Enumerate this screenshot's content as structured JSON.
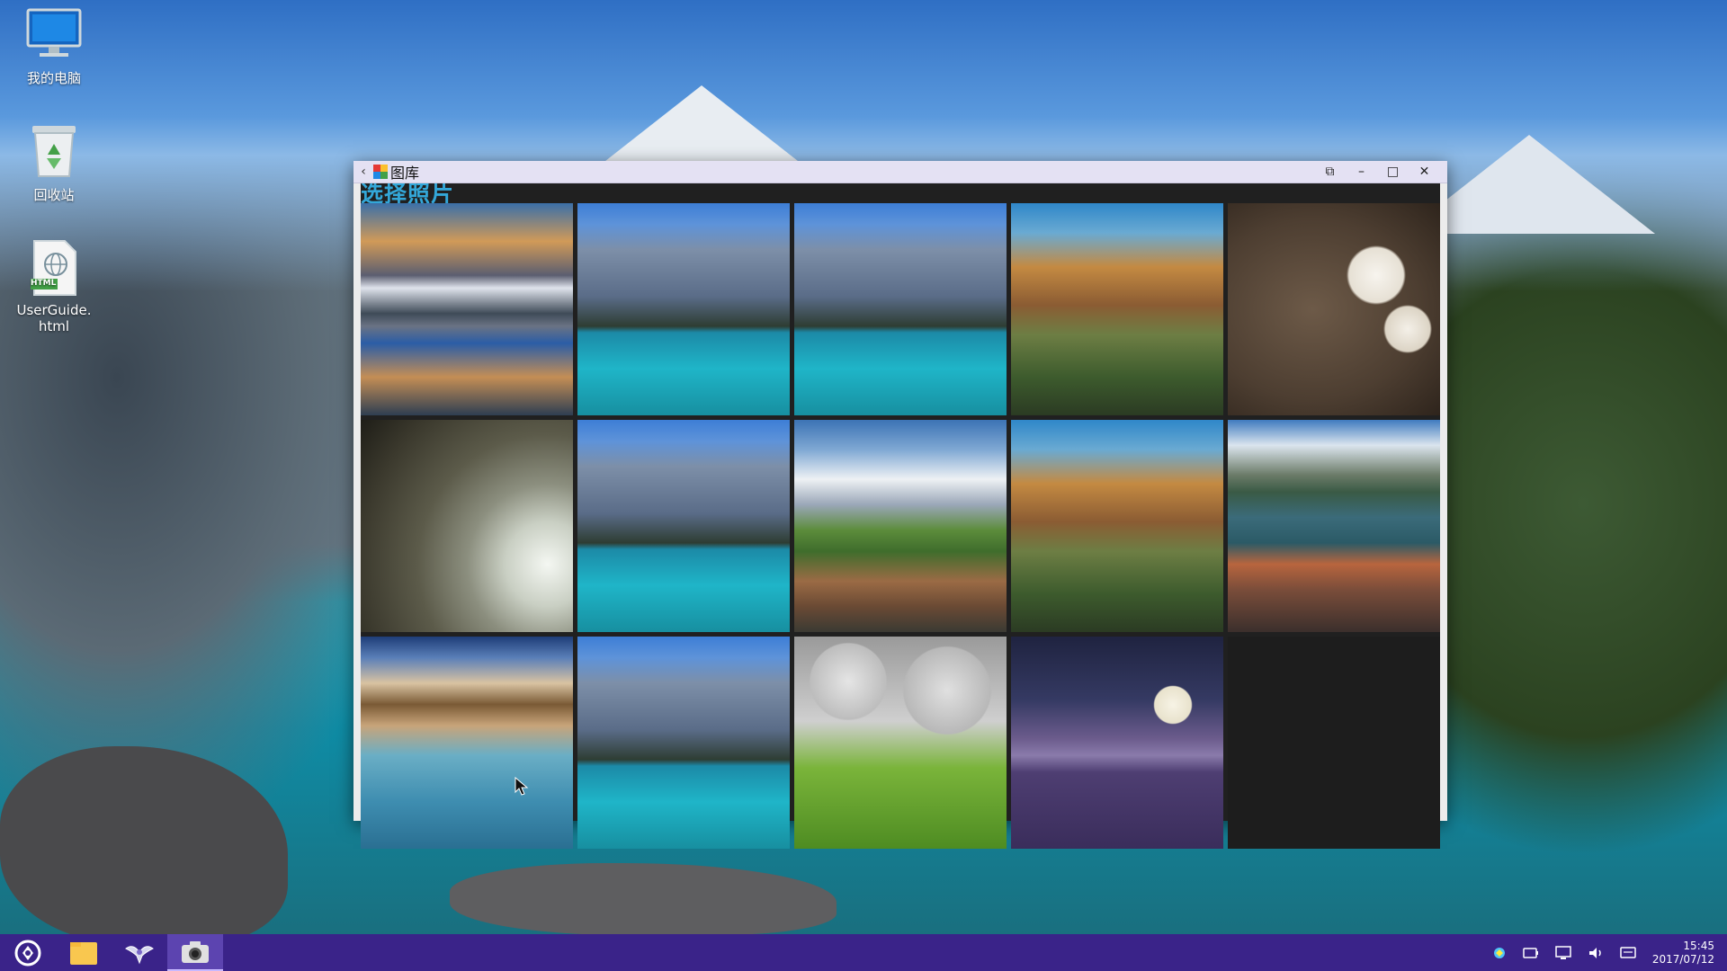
{
  "desktop": {
    "icons": [
      {
        "label": "我的电脑",
        "icon": "computer-icon"
      },
      {
        "label": "回收站",
        "icon": "recycle-bin-icon"
      },
      {
        "label": "UserGuide.\nhtml",
        "icon": "html-file-icon",
        "badge": "HTML"
      }
    ]
  },
  "window": {
    "title": "图库",
    "back_symbol": "‹",
    "controls": {
      "popout": "⧉",
      "minimize": "–",
      "maximize": "□",
      "close": "✕"
    }
  },
  "gallery": {
    "header": "选择照片",
    "photos": [
      {
        "name": "lake-sunset-photo"
      },
      {
        "name": "moraine-lake-photo"
      },
      {
        "name": "moraine-lake-photo"
      },
      {
        "name": "canyon-photo"
      },
      {
        "name": "cherry-blossom-photo"
      },
      {
        "name": "fractal-flower-photo"
      },
      {
        "name": "moraine-lake-photo"
      },
      {
        "name": "patagonia-peaks-photo"
      },
      {
        "name": "canyon-photo"
      },
      {
        "name": "mountain-lake-photo"
      },
      {
        "name": "tropical-pier-photo"
      },
      {
        "name": "moraine-lake-photo"
      },
      {
        "name": "moons-tree-photo"
      },
      {
        "name": "night-moon-lake-photo"
      }
    ]
  },
  "taskbar": {
    "apps": [
      "start-menu-icon",
      "file-manager-icon",
      "bird-app-icon",
      "camera-app-icon"
    ],
    "tray": {
      "time": "15:45",
      "date": "2017/07/12"
    }
  },
  "colors": {
    "taskbar": "#3a2389",
    "header_text": "#33a7d8",
    "titlebar": "#e4e1f3"
  }
}
